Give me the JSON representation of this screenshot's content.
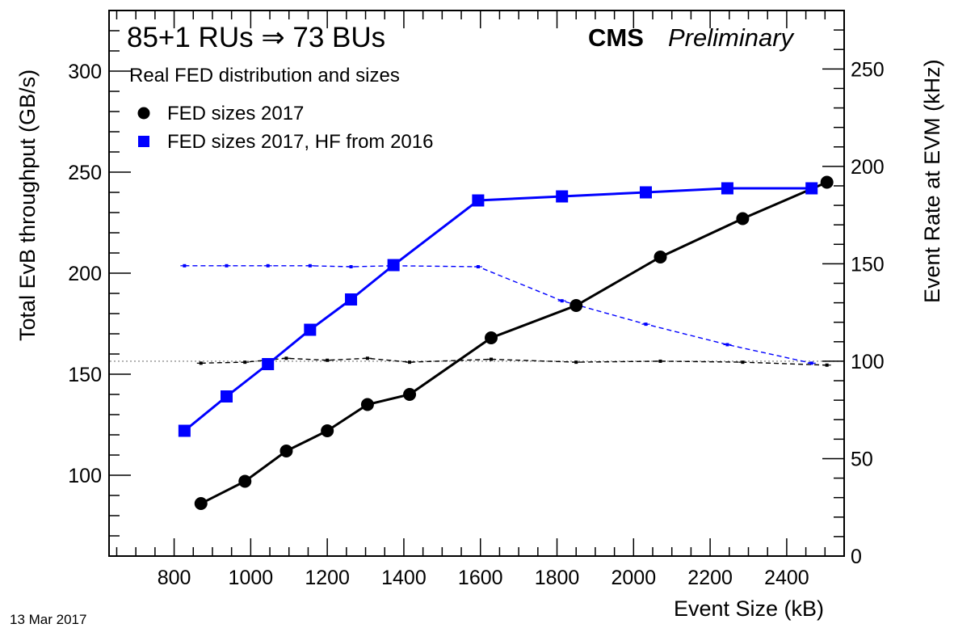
{
  "chart_data": {
    "type": "line",
    "title": "85+1 RUs ⇒ 73 BUs",
    "subtitle": "Real FED distribution and sizes",
    "experiment_label": "CMS",
    "status_label": "Preliminary",
    "date": "13 Mar 2017",
    "xlabel": "Event Size (kB)",
    "ylabel": "Total EvB throughput (GB/s)",
    "y2label": "Event Rate at EVM (kHz)",
    "xlim": [
      630,
      2550
    ],
    "ylim": [
      60,
      330
    ],
    "y2lim": [
      0,
      280
    ],
    "x_ticks": [
      800,
      1000,
      1200,
      1400,
      1600,
      1800,
      2000,
      2200,
      2400
    ],
    "y_ticks": [
      100,
      150,
      200,
      250,
      300
    ],
    "y2_ticks": [
      0,
      50,
      100,
      150,
      200,
      250
    ],
    "reference_line_rate": 100,
    "legend_position": "top-left",
    "grid": false,
    "series": [
      {
        "name": "FED sizes 2017",
        "axis": "left",
        "marker": "circle",
        "color": "#000000",
        "x": [
          870,
          985,
          1093,
          1200,
          1305,
          1415,
          1628,
          1850,
          2070,
          2285,
          2505
        ],
        "values": [
          86,
          97,
          112,
          122,
          135,
          140,
          168,
          184,
          208,
          227,
          245
        ]
      },
      {
        "name": "FED sizes 2017, HF from 2016",
        "axis": "left",
        "marker": "square",
        "color": "#0000ff",
        "x": [
          827,
          937,
          1045,
          1155,
          1262,
          1373,
          1594,
          1813,
          2032,
          2245,
          2465
        ],
        "values": [
          122,
          139,
          155,
          172,
          187,
          204,
          236,
          238,
          240,
          242,
          242
        ]
      },
      {
        "axis": "right",
        "marker": "small",
        "color": "#000000",
        "dashed": true,
        "x": [
          870,
          985,
          1093,
          1200,
          1305,
          1415,
          1628,
          1850,
          2070,
          2285,
          2505
        ],
        "values": [
          99,
          99.5,
          101.5,
          100.5,
          101.5,
          99.5,
          101,
          99.5,
          100,
          99.5,
          98
        ]
      },
      {
        "axis": "right",
        "marker": "small",
        "color": "#0000ff",
        "dashed": true,
        "x": [
          827,
          937,
          1045,
          1155,
          1262,
          1373,
          1594,
          1813,
          2032,
          2245,
          2465
        ],
        "values": [
          149,
          149,
          149,
          149,
          148.5,
          149,
          148.5,
          131,
          119,
          108.5,
          99
        ]
      }
    ]
  }
}
